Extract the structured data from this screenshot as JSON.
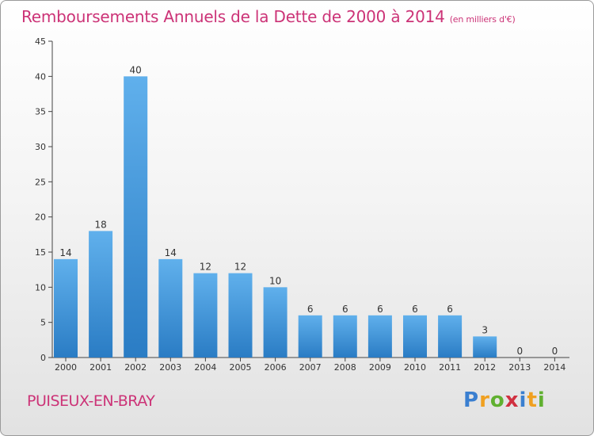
{
  "header": {
    "title": "Remboursements Annuels de la Dette de 2000 à 2014",
    "unit": "(en milliers d'€)"
  },
  "footer": {
    "place": "PUISEUX-EN-BRAY",
    "logo_letters": [
      {
        "ch": "P",
        "color": "#3a7fd0"
      },
      {
        "ch": "r",
        "color": "#f0a020"
      },
      {
        "ch": "o",
        "color": "#60b030"
      },
      {
        "ch": "x",
        "color": "#d03040"
      },
      {
        "ch": "i",
        "color": "#3a7fd0"
      },
      {
        "ch": "t",
        "color": "#f0a020"
      },
      {
        "ch": "i",
        "color": "#60b030"
      }
    ]
  },
  "chart_data": {
    "type": "bar",
    "title": "Remboursements Annuels de la Dette de 2000 à 2014",
    "subtitle": "(en milliers d'€)",
    "xlabel": "",
    "ylabel": "",
    "categories": [
      "2000",
      "2001",
      "2002",
      "2003",
      "2004",
      "2005",
      "2006",
      "2007",
      "2008",
      "2009",
      "2010",
      "2011",
      "2012",
      "2013",
      "2014"
    ],
    "values": [
      14,
      18,
      40,
      14,
      12,
      12,
      10,
      6,
      6,
      6,
      6,
      6,
      3,
      0,
      0
    ],
    "ylim": [
      0,
      45
    ],
    "yticks": [
      0,
      5,
      10,
      15,
      20,
      25,
      30,
      35,
      40,
      45
    ],
    "grid": false,
    "legend": "none",
    "colors": {
      "bar_top": "#60b0ec",
      "bar_bottom": "#2a7cc4",
      "axis": "#444444",
      "tick_text": "#333333",
      "accent": "#cc3377"
    }
  }
}
